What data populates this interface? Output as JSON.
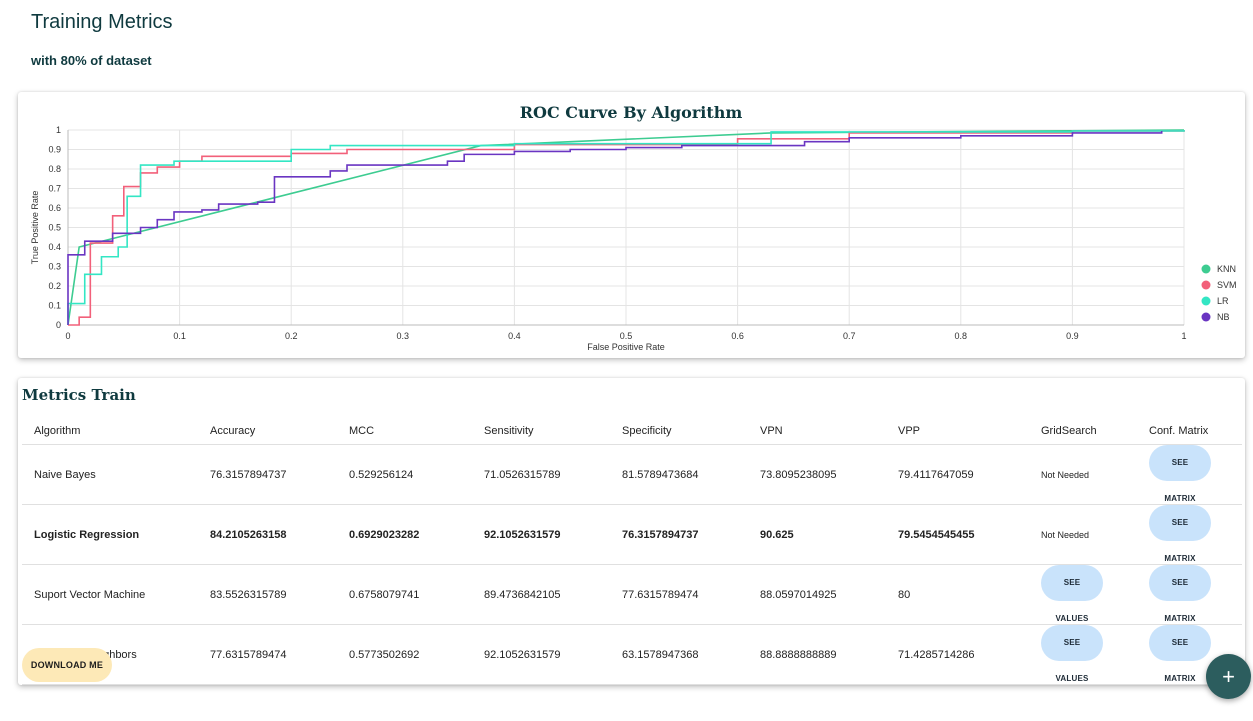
{
  "page": {
    "title": "Training Metrics",
    "subtitle": "with 80% of dataset"
  },
  "chart_data": {
    "type": "line",
    "title": "ROC Curve By Algorithm",
    "xlabel": "False Positive Rate",
    "ylabel": "True Positive Rate",
    "xlim": [
      0,
      1
    ],
    "ylim": [
      0,
      1
    ],
    "x_ticks": [
      "0",
      "0.1",
      "0.2",
      "0.3",
      "0.4",
      "0.5",
      "0.6",
      "0.7",
      "0.8",
      "0.9",
      "1"
    ],
    "y_ticks": [
      "0",
      "0.1",
      "0.2",
      "0.3",
      "0.4",
      "0.5",
      "0.6",
      "0.7",
      "0.8",
      "0.9",
      "1"
    ],
    "grid": true,
    "legend_position": "right",
    "series": [
      {
        "name": "KNN",
        "color": "#3dcc91",
        "step": false,
        "points": [
          [
            0,
            0
          ],
          [
            0.01,
            0.4
          ],
          [
            0.37,
            0.92
          ],
          [
            0.63,
            0.985
          ],
          [
            1,
            1
          ]
        ]
      },
      {
        "name": "SVM",
        "color": "#f2607a",
        "step": true,
        "points": [
          [
            0,
            0
          ],
          [
            0.01,
            0.04
          ],
          [
            0.02,
            0.42
          ],
          [
            0.04,
            0.56
          ],
          [
            0.05,
            0.71
          ],
          [
            0.065,
            0.78
          ],
          [
            0.08,
            0.81
          ],
          [
            0.1,
            0.84
          ],
          [
            0.12,
            0.865
          ],
          [
            0.2,
            0.88
          ],
          [
            0.25,
            0.9
          ],
          [
            0.4,
            0.925
          ],
          [
            0.6,
            0.955
          ],
          [
            0.7,
            0.985
          ],
          [
            0.9,
            0.995
          ],
          [
            1,
            1
          ]
        ]
      },
      {
        "name": "LR",
        "color": "#33e6c4",
        "step": true,
        "points": [
          [
            0,
            0
          ],
          [
            0,
            0.11
          ],
          [
            0.015,
            0.26
          ],
          [
            0.03,
            0.35
          ],
          [
            0.045,
            0.4
          ],
          [
            0.053,
            0.66
          ],
          [
            0.065,
            0.82
          ],
          [
            0.095,
            0.84
          ],
          [
            0.2,
            0.9
          ],
          [
            0.235,
            0.92
          ],
          [
            0.4,
            0.93
          ],
          [
            0.63,
            0.99
          ],
          [
            0.9,
            0.995
          ],
          [
            1,
            1
          ]
        ]
      },
      {
        "name": "NB",
        "color": "#6a35c2",
        "step": true,
        "points": [
          [
            0,
            0
          ],
          [
            0,
            0.36
          ],
          [
            0.015,
            0.43
          ],
          [
            0.04,
            0.47
          ],
          [
            0.065,
            0.5
          ],
          [
            0.08,
            0.54
          ],
          [
            0.095,
            0.58
          ],
          [
            0.12,
            0.59
          ],
          [
            0.135,
            0.62
          ],
          [
            0.17,
            0.63
          ],
          [
            0.185,
            0.76
          ],
          [
            0.235,
            0.79
          ],
          [
            0.25,
            0.82
          ],
          [
            0.34,
            0.84
          ],
          [
            0.355,
            0.875
          ],
          [
            0.4,
            0.89
          ],
          [
            0.45,
            0.9
          ],
          [
            0.5,
            0.91
          ],
          [
            0.55,
            0.92
          ],
          [
            0.66,
            0.94
          ],
          [
            0.7,
            0.96
          ],
          [
            0.8,
            0.97
          ],
          [
            0.9,
            0.985
          ],
          [
            0.98,
            0.995
          ]
        ]
      }
    ]
  },
  "metrics": {
    "title": "Metrics Train",
    "headers": [
      "Algorithm",
      "Accuracy",
      "MCC",
      "Sensitivity",
      "Specificity",
      "VPN",
      "VPP",
      "GridSearch",
      "Conf. Matrix"
    ],
    "rows": [
      {
        "algorithm": "Naive Bayes",
        "accuracy": "76.3157894737",
        "mcc": "0.529256124",
        "sensitivity": "71.0526315789",
        "specificity": "81.5789473684",
        "vpn": "73.8095238095",
        "vpp": "79.4117647059",
        "gridsearch": "Not Needed",
        "matrix": "SEE MATRIX"
      },
      {
        "algorithm": "Logistic Regression",
        "accuracy": "84.2105263158",
        "mcc": "0.6929023282",
        "sensitivity": "92.1052631579",
        "specificity": "76.3157894737",
        "vpn": "90.625",
        "vpp": "79.5454545455",
        "gridsearch": "Not Needed",
        "matrix": "SEE MATRIX"
      },
      {
        "algorithm": "Suport Vector Machine",
        "accuracy": "83.5526315789",
        "mcc": "0.6758079741",
        "sensitivity": "89.4736842105",
        "specificity": "77.6315789474",
        "vpn": "88.0597014925",
        "vpp": "80",
        "gridsearch": "SEE VALUES",
        "matrix": "SEE MATRIX"
      },
      {
        "algorithm": "K-Nearest Neighbors",
        "accuracy": "77.6315789474",
        "mcc": "0.5773502692",
        "sensitivity": "92.1052631579",
        "specificity": "63.1578947368",
        "vpn": "88.8888888889",
        "vpp": "71.4285714286",
        "gridsearch": "SEE VALUES",
        "matrix": "SEE MATRIX"
      }
    ],
    "download_label": "DOWNLOAD ME"
  },
  "fab": {
    "icon": "plus-icon",
    "label": "+"
  }
}
